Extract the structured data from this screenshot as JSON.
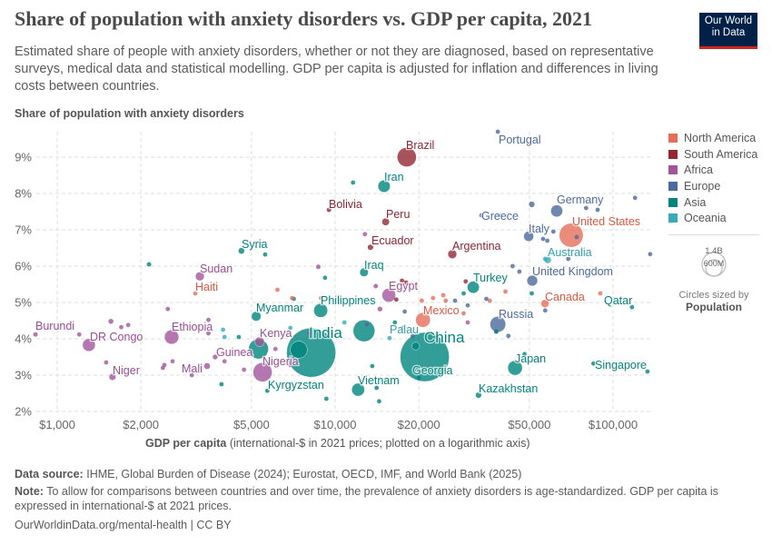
{
  "title": "Share of population with anxiety disorders vs. GDP per capita, 2021",
  "subtitle": "Estimated share of people with anxiety disorders, whether or not they are diagnosed, based on representative surveys, medical data and statistical modelling. GDP per capita is adjusted for inflation and differences in living costs between countries.",
  "logo": {
    "line1": "Our World",
    "line2": "in Data",
    "bg": "#002147",
    "accent": "#ce261e"
  },
  "footer": {
    "source_label": "Data source:",
    "source": "IHME, Global Burden of Disease (2024); Eurostat, OECD, IMF, and World Bank (2025)",
    "note_label": "Note:",
    "note": "To allow for comparisons between countries and over time, the prevalence of anxiety disorders is age-standardized. GDP per capita is expressed in international-$ at 2021 prices.",
    "url": "OurWorldinData.org/mental-health | CC BY"
  },
  "size_legend": {
    "large": "1.4B",
    "small": "600M",
    "caption": "Circles sized by",
    "variable": "Population"
  },
  "chart_data": {
    "type": "scatter",
    "title": "Share of population with anxiety disorders vs. GDP per capita, 2021",
    "ylabel": "Share of population with anxiety disorders",
    "xlabel_bold": "GDP per capita",
    "xlabel_rest": " (international-$ in 2021 prices; plotted on a logarithmic axis)",
    "x_scale": "log",
    "xlim": [
      840,
      137000
    ],
    "ylim": [
      2,
      9.8
    ],
    "grid": true,
    "legend_position": "right",
    "x_ticks": [
      {
        "v": 1000,
        "label": "$1,000"
      },
      {
        "v": 2000,
        "label": "$2,000"
      },
      {
        "v": 5000,
        "label": "$5,000"
      },
      {
        "v": 10000,
        "label": "$10,000"
      },
      {
        "v": 20000,
        "label": "$20,000"
      },
      {
        "v": 50000,
        "label": "$50,000"
      },
      {
        "v": 100000,
        "label": "$100,000"
      }
    ],
    "y_ticks": [
      {
        "v": 2,
        "label": "2%"
      },
      {
        "v": 3,
        "label": "3%"
      },
      {
        "v": 4,
        "label": "4%"
      },
      {
        "v": 5,
        "label": "5%"
      },
      {
        "v": 6,
        "label": "6%"
      },
      {
        "v": 7,
        "label": "7%"
      },
      {
        "v": 8,
        "label": "8%"
      },
      {
        "v": 9,
        "label": "9%"
      }
    ],
    "regions": [
      {
        "name": "North America",
        "color": "#e56e5a"
      },
      {
        "name": "South America",
        "color": "#932834"
      },
      {
        "name": "Africa",
        "color": "#a2559c"
      },
      {
        "name": "Europe",
        "color": "#4c6a9c"
      },
      {
        "name": "Asia",
        "color": "#00847e"
      },
      {
        "name": "Oceania",
        "color": "#38aaba"
      }
    ],
    "points": [
      {
        "label": "Brazil",
        "region": "South America",
        "gdp": 18100,
        "share": 9.0,
        "pop": 215
      },
      {
        "label": "Portugal",
        "region": "Europe",
        "gdp": 38500,
        "share": 9.7,
        "pop": 10
      },
      {
        "label": "Iran",
        "region": "Asia",
        "gdp": 15000,
        "share": 8.2,
        "pop": 88
      },
      {
        "label": "Bolivia",
        "region": "South America",
        "gdp": 9500,
        "share": 7.55,
        "pop": 12
      },
      {
        "label": "Peru",
        "region": "South America",
        "gdp": 15200,
        "share": 7.22,
        "pop": 33
      },
      {
        "label": "Ecuador",
        "region": "South America",
        "gdp": 13400,
        "share": 6.52,
        "pop": 18
      },
      {
        "label": "Argentina",
        "region": "South America",
        "gdp": 26400,
        "share": 6.33,
        "pop": 46
      },
      {
        "label": "Greece",
        "region": "Europe",
        "gdp": 33600,
        "share": 7.4,
        "pop": 10
      },
      {
        "label": "Germany",
        "region": "Europe",
        "gdp": 62700,
        "share": 7.52,
        "pop": 84
      },
      {
        "label": "Italy",
        "region": "Europe",
        "gdp": 49700,
        "share": 6.82,
        "pop": 59
      },
      {
        "label": "United States",
        "region": "North America",
        "gdp": 70700,
        "share": 6.85,
        "pop": 335
      },
      {
        "label": "Australia",
        "region": "Oceania",
        "gdp": 58200,
        "share": 6.17,
        "pop": 26
      },
      {
        "label": "United Kingdom",
        "region": "Europe",
        "gdp": 51200,
        "share": 5.6,
        "pop": 67
      },
      {
        "label": "Turkey",
        "region": "Asia",
        "gdp": 31400,
        "share": 5.42,
        "pop": 85
      },
      {
        "label": "Egypt",
        "region": "Africa",
        "gdp": 15600,
        "share": 5.2,
        "pop": 110
      },
      {
        "label": "Canada",
        "region": "North America",
        "gdp": 56900,
        "share": 4.97,
        "pop": 38
      },
      {
        "label": "Qatar",
        "region": "Asia",
        "gdp": 117000,
        "share": 4.87,
        "pop": 3
      },
      {
        "label": "Mexico",
        "region": "North America",
        "gdp": 20700,
        "share": 4.52,
        "pop": 127
      },
      {
        "label": "Russia",
        "region": "Europe",
        "gdp": 38500,
        "share": 4.4,
        "pop": 144
      },
      {
        "label": "Palau",
        "region": "Oceania",
        "gdp": 15700,
        "share": 4.02,
        "pop": 1
      },
      {
        "label": "China",
        "region": "Asia",
        "gdp": 21000,
        "share": 3.5,
        "pop": 1410
      },
      {
        "label": "Japan",
        "region": "Asia",
        "gdp": 44400,
        "share": 3.2,
        "pop": 125
      },
      {
        "label": "Singapore",
        "region": "Asia",
        "gdp": 133000,
        "share": 3.1,
        "pop": 6
      },
      {
        "label": "Georgia",
        "region": "Asia",
        "gdp": 20000,
        "share": 2.92,
        "pop": 4
      },
      {
        "label": "Kazakhstan",
        "region": "Asia",
        "gdp": 32800,
        "share": 2.45,
        "pop": 19
      },
      {
        "label": "Vietnam",
        "region": "Asia",
        "gdp": 12100,
        "share": 2.6,
        "pop": 98
      },
      {
        "label": "Kyrgyzstan",
        "region": "Asia",
        "gdp": 5700,
        "share": 2.57,
        "pop": 7
      },
      {
        "label": "Nigeria",
        "region": "Africa",
        "gdp": 5480,
        "share": 3.08,
        "pop": 213
      },
      {
        "label": "India",
        "region": "Asia",
        "gdp": 8200,
        "share": 3.62,
        "pop": 1410
      },
      {
        "label": "Kenya",
        "region": "Africa",
        "gdp": 5350,
        "share": 3.92,
        "pop": 53
      },
      {
        "label": "Guinea",
        "region": "Africa",
        "gdp": 3700,
        "share": 3.5,
        "pop": 14
      },
      {
        "label": "Mali",
        "region": "Africa",
        "gdp": 3460,
        "share": 3.25,
        "pop": 22
      },
      {
        "label": "Niger",
        "region": "Africa",
        "gdp": 1580,
        "share": 2.95,
        "pop": 25
      },
      {
        "label": "DR Congo",
        "region": "Africa",
        "gdp": 1300,
        "share": 3.83,
        "pop": 96
      },
      {
        "label": "Burundi",
        "region": "Africa",
        "gdp": 835,
        "share": 4.12,
        "pop": 12
      },
      {
        "label": "Ethiopia",
        "region": "Africa",
        "gdp": 2580,
        "share": 4.05,
        "pop": 120
      },
      {
        "label": "Haiti",
        "region": "North America",
        "gdp": 3140,
        "share": 5.25,
        "pop": 11
      },
      {
        "label": "Sudan",
        "region": "Africa",
        "gdp": 3260,
        "share": 5.72,
        "pop": 46
      },
      {
        "label": "Syria",
        "region": "Asia",
        "gdp": 4600,
        "share": 6.42,
        "pop": 21
      },
      {
        "label": "Myanmar",
        "region": "Asia",
        "gdp": 5200,
        "share": 4.62,
        "pop": 54
      },
      {
        "label": "Philippines",
        "region": "Asia",
        "gdp": 8870,
        "share": 4.78,
        "pop": 114
      },
      {
        "label": "Iraq",
        "region": "Asia",
        "gdp": 12700,
        "share": 5.83,
        "pop": 43
      },
      {
        "region": "Asia",
        "gdp": 5300,
        "share": 3.72,
        "pop": 230
      },
      {
        "region": "Asia",
        "gdp": 12700,
        "share": 4.22,
        "pop": 275
      },
      {
        "region": "Asia",
        "gdp": 7400,
        "share": 3.7,
        "pop": 170
      },
      {
        "region": "Africa",
        "gdp": 1200,
        "share": 4.12,
        "pop": 3
      },
      {
        "region": "Africa",
        "gdp": 1560,
        "share": 4.48,
        "pop": 15
      },
      {
        "region": "Africa",
        "gdp": 1700,
        "share": 4.32,
        "pop": 8
      },
      {
        "region": "Africa",
        "gdp": 1800,
        "share": 4.38,
        "pop": 5
      },
      {
        "region": "Africa",
        "gdp": 1500,
        "share": 3.35,
        "pop": 5
      },
      {
        "region": "Africa",
        "gdp": 2500,
        "share": 4.82,
        "pop": 3
      },
      {
        "region": "Africa",
        "gdp": 3500,
        "share": 4.52,
        "pop": 3
      },
      {
        "region": "Africa",
        "gdp": 3500,
        "share": 4.15,
        "pop": 8
      },
      {
        "region": "Africa",
        "gdp": 2430,
        "share": 3.28,
        "pop": 7
      },
      {
        "region": "Africa",
        "gdp": 2400,
        "share": 3.2,
        "pop": 8
      },
      {
        "region": "Africa",
        "gdp": 2600,
        "share": 3.38,
        "pop": 5
      },
      {
        "region": "Africa",
        "gdp": 3050,
        "share": 3.0,
        "pop": 6
      },
      {
        "region": "Africa",
        "gdp": 4000,
        "share": 3.38,
        "pop": 4
      },
      {
        "region": "Africa",
        "gdp": 4700,
        "share": 3.15,
        "pop": 6
      },
      {
        "region": "Africa",
        "gdp": 6100,
        "share": 3.72,
        "pop": 4
      },
      {
        "region": "Africa",
        "gdp": 6900,
        "share": 3.28,
        "pop": 12
      },
      {
        "region": "Africa",
        "gdp": 8100,
        "share": 4.15,
        "pop": 6
      },
      {
        "region": "Africa",
        "gdp": 8700,
        "share": 5.98,
        "pop": 12
      },
      {
        "region": "Africa",
        "gdp": 12800,
        "share": 6.88,
        "pop": 2
      },
      {
        "region": "Africa",
        "gdp": 14000,
        "share": 5.45,
        "pop": 12
      },
      {
        "region": "Africa",
        "gdp": 14500,
        "share": 4.82,
        "pop": 14
      },
      {
        "region": "Africa",
        "gdp": 17500,
        "share": 4.3,
        "pop": 2
      },
      {
        "region": "Africa",
        "gdp": 30000,
        "share": 4.45,
        "pop": 2
      },
      {
        "region": "Asia",
        "gdp": 2140,
        "share": 6.05,
        "pop": 12
      },
      {
        "region": "Asia",
        "gdp": 5600,
        "share": 6.32,
        "pop": 3
      },
      {
        "region": "Asia",
        "gdp": 3900,
        "share": 2.75,
        "pop": 3
      },
      {
        "region": "Asia",
        "gdp": 4500,
        "share": 4.05,
        "pop": 3
      },
      {
        "region": "Asia",
        "gdp": 7100,
        "share": 5.1,
        "pop": 3
      },
      {
        "region": "Asia",
        "gdp": 9200,
        "share": 5.68,
        "pop": 3
      },
      {
        "region": "Asia",
        "gdp": 9300,
        "share": 2.35,
        "pop": 6
      },
      {
        "region": "Asia",
        "gdp": 11600,
        "share": 8.3,
        "pop": 2
      },
      {
        "region": "Asia",
        "gdp": 14100,
        "share": 2.65,
        "pop": 3
      },
      {
        "region": "Asia",
        "gdp": 13600,
        "share": 3.25,
        "pop": 3
      },
      {
        "region": "Asia",
        "gdp": 14400,
        "share": 2.28,
        "pop": 3
      },
      {
        "region": "Asia",
        "gdp": 16400,
        "share": 4.45,
        "pop": 5
      },
      {
        "region": "Asia",
        "gdp": 19500,
        "share": 3.8,
        "pop": 36
      },
      {
        "region": "Asia",
        "gdp": 29000,
        "share": 5.25,
        "pop": 5
      },
      {
        "region": "Asia",
        "gdp": 38000,
        "share": 4.2,
        "pop": 3
      },
      {
        "region": "Asia",
        "gdp": 48000,
        "share": 3.58,
        "pop": 5
      },
      {
        "region": "Asia",
        "gdp": 51000,
        "share": 5.25,
        "pop": 3
      },
      {
        "region": "Asia",
        "gdp": 85000,
        "share": 3.32,
        "pop": 3
      },
      {
        "region": "Europe",
        "gdp": 13000,
        "share": 4.4,
        "pop": 2
      },
      {
        "region": "Europe",
        "gdp": 17800,
        "share": 4.75,
        "pop": 2
      },
      {
        "region": "Europe",
        "gdp": 19000,
        "share": 4.08,
        "pop": 4
      },
      {
        "region": "Europe",
        "gdp": 27000,
        "share": 5.05,
        "pop": 3
      },
      {
        "region": "Europe",
        "gdp": 30000,
        "share": 4.92,
        "pop": 3
      },
      {
        "region": "Europe",
        "gdp": 35000,
        "share": 5.1,
        "pop": 3
      },
      {
        "region": "Europe",
        "gdp": 38000,
        "share": 4.2,
        "pop": 10
      },
      {
        "region": "Europe",
        "gdp": 42000,
        "share": 4.08,
        "pop": 4
      },
      {
        "region": "Europe",
        "gdp": 43500,
        "share": 6.0,
        "pop": 11
      },
      {
        "region": "Europe",
        "gdp": 46000,
        "share": 5.85,
        "pop": 3
      },
      {
        "region": "Europe",
        "gdp": 51000,
        "share": 7.7,
        "pop": 19
      },
      {
        "region": "Europe",
        "gdp": 56000,
        "share": 6.75,
        "pop": 3
      },
      {
        "region": "Europe",
        "gdp": 58000,
        "share": 6.7,
        "pop": 3
      },
      {
        "region": "Europe",
        "gdp": 61000,
        "share": 6.95,
        "pop": 2
      },
      {
        "region": "Europe",
        "gdp": 80000,
        "share": 7.6,
        "pop": 2
      },
      {
        "region": "Europe",
        "gdp": 88000,
        "share": 7.55,
        "pop": 2
      },
      {
        "region": "Europe",
        "gdp": 74000,
        "share": 6.8,
        "pop": 3
      },
      {
        "region": "Europe",
        "gdp": 57000,
        "share": 4.78,
        "pop": 3
      },
      {
        "region": "Europe",
        "gdp": 120000,
        "share": 7.88,
        "pop": 1
      },
      {
        "region": "Europe",
        "gdp": 136000,
        "share": 6.33,
        "pop": 1
      },
      {
        "region": "Europe",
        "gdp": 69000,
        "share": 6.2,
        "pop": 5
      },
      {
        "region": "North America",
        "gdp": 6200,
        "share": 5.35,
        "pop": 3
      },
      {
        "region": "North America",
        "gdp": 7000,
        "share": 5.12,
        "pop": 3
      },
      {
        "region": "North America",
        "gdp": 8900,
        "share": 5.12,
        "pop": 3
      },
      {
        "region": "North America",
        "gdp": 20500,
        "share": 5.05,
        "pop": 3
      },
      {
        "region": "North America",
        "gdp": 22500,
        "share": 5.12,
        "pop": 3
      },
      {
        "region": "North America",
        "gdp": 24500,
        "share": 5.2,
        "pop": 3
      },
      {
        "region": "North America",
        "gdp": 25000,
        "share": 5.05,
        "pop": 3
      },
      {
        "region": "North America",
        "gdp": 29000,
        "share": 4.7,
        "pop": 3
      },
      {
        "region": "North America",
        "gdp": 36000,
        "share": 5.05,
        "pop": 2
      },
      {
        "region": "North America",
        "gdp": 41000,
        "share": 5.3,
        "pop": 2
      },
      {
        "region": "North America",
        "gdp": 90000,
        "share": 5.25,
        "pop": 1
      },
      {
        "region": "South America",
        "gdp": 17400,
        "share": 5.6,
        "pop": 7
      },
      {
        "region": "South America",
        "gdp": 18000,
        "share": 5.55,
        "pop": 3
      },
      {
        "region": "South America",
        "gdp": 29500,
        "share": 5.58,
        "pop": 3
      },
      {
        "region": "South America",
        "gdp": 16600,
        "share": 5.08,
        "pop": 3
      },
      {
        "region": "Oceania",
        "gdp": 3950,
        "share": 4.25,
        "pop": 2
      },
      {
        "region": "Oceania",
        "gdp": 4000,
        "share": 4.05,
        "pop": 2
      },
      {
        "region": "Oceania",
        "gdp": 6900,
        "share": 4.3,
        "pop": 2
      },
      {
        "region": "Oceania",
        "gdp": 10800,
        "share": 4.45,
        "pop": 2
      },
      {
        "region": "Oceania",
        "gdp": 39000,
        "share": 7.4,
        "pop": 1
      },
      {
        "region": "Oceania",
        "gdp": 57000,
        "share": 6.2,
        "pop": 5
      }
    ]
  }
}
